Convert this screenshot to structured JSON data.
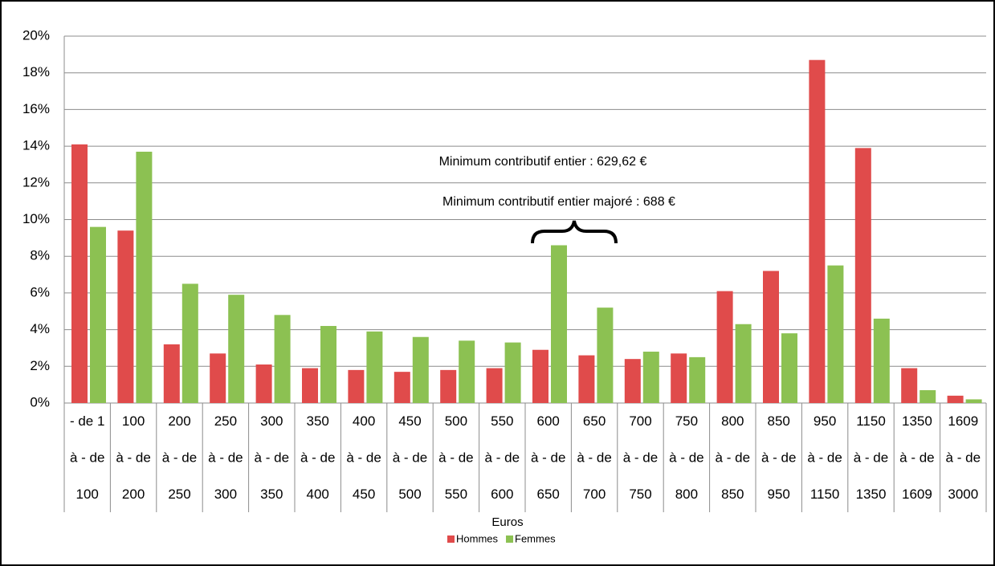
{
  "chart_data": {
    "type": "bar",
    "categories": [
      [
        "- de 1",
        "à - de",
        "100"
      ],
      [
        "100",
        "à - de",
        "200"
      ],
      [
        "200",
        "à - de",
        "250"
      ],
      [
        "250",
        "à - de",
        "300"
      ],
      [
        "300",
        "à - de",
        "350"
      ],
      [
        "350",
        "à - de",
        "400"
      ],
      [
        "400",
        "à - de",
        "450"
      ],
      [
        "450",
        "à - de",
        "500"
      ],
      [
        "500",
        "à - de",
        "550"
      ],
      [
        "550",
        "à - de",
        "600"
      ],
      [
        "600",
        "à - de",
        "650"
      ],
      [
        "650",
        "à - de",
        "700"
      ],
      [
        "700",
        "à - de",
        "750"
      ],
      [
        "750",
        "à - de",
        "800"
      ],
      [
        "800",
        "à - de",
        "850"
      ],
      [
        "850",
        "à - de",
        "950"
      ],
      [
        "950",
        "à - de",
        "1150"
      ],
      [
        "1150",
        "à - de",
        "1350"
      ],
      [
        "1350",
        "à - de",
        "1609"
      ],
      [
        "1609",
        "à - de",
        "3000"
      ]
    ],
    "series": [
      {
        "name": "Hommes",
        "color": "#e04b4b",
        "values": [
          14.1,
          9.4,
          3.2,
          2.7,
          2.1,
          1.9,
          1.8,
          1.7,
          1.8,
          1.9,
          2.9,
          2.6,
          2.4,
          2.7,
          6.1,
          7.2,
          18.7,
          13.9,
          1.9,
          0.4
        ]
      },
      {
        "name": "Femmes",
        "color": "#8cc152",
        "values": [
          9.6,
          13.7,
          6.5,
          5.9,
          4.8,
          4.2,
          3.9,
          3.6,
          3.4,
          3.3,
          8.6,
          5.2,
          2.8,
          2.5,
          4.3,
          3.8,
          7.5,
          4.6,
          0.7,
          0.2
        ]
      }
    ],
    "ylim": [
      0,
      20
    ],
    "yticks": [
      {
        "value": 0,
        "label": "0%"
      },
      {
        "value": 2,
        "label": "2%"
      },
      {
        "value": 4,
        "label": "4%"
      },
      {
        "value": 6,
        "label": "6%"
      },
      {
        "value": 8,
        "label": "8%"
      },
      {
        "value": 10,
        "label": "10%"
      },
      {
        "value": 12,
        "label": "12%"
      },
      {
        "value": 14,
        "label": "14%"
      },
      {
        "value": 16,
        "label": "16%"
      },
      {
        "value": 18,
        "label": "18%"
      },
      {
        "value": 20,
        "label": "20%"
      }
    ],
    "grid": true,
    "x_label": "Euros",
    "annotations": [
      "Minimum contributif entier : 629,62 €",
      "Minimum contributif entier majoré : 688 €"
    ]
  }
}
